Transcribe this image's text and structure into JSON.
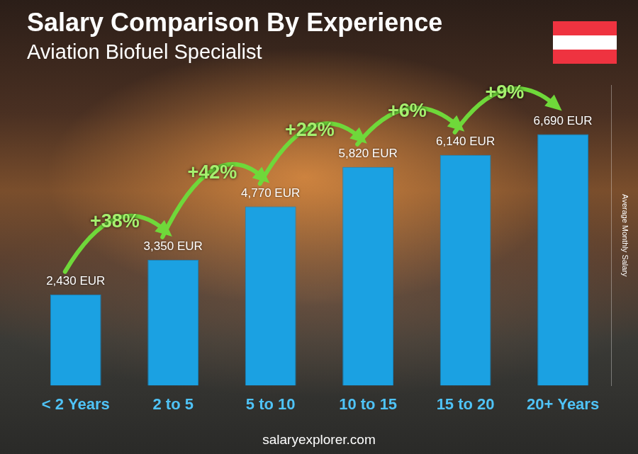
{
  "chart_data": {
    "type": "bar",
    "title": "Salary Comparison By Experience",
    "subtitle": "Aviation Biofuel Specialist",
    "categories": [
      "< 2 Years",
      "2 to 5",
      "5 to 10",
      "10 to 15",
      "15 to 20",
      "20+ Years"
    ],
    "values": [
      2430,
      3350,
      4770,
      5820,
      6140,
      6690
    ],
    "value_labels": [
      "2,430 EUR",
      "3,350 EUR",
      "4,770 EUR",
      "5,820 EUR",
      "6,140 EUR",
      "6,690 EUR"
    ],
    "data_labels": true,
    "color": "#1ba1e2",
    "y_label": "Average Monthly Salary",
    "ylim": [
      0,
      8000
    ],
    "grid": false,
    "tick_labels": "x",
    "annotations": [
      {
        "text": "+38%",
        "between": [
          "< 2 Years",
          "2 to 5"
        ]
      },
      {
        "text": "+42%",
        "between": [
          "2 to 5",
          "5 to 10"
        ]
      },
      {
        "text": "+22%",
        "between": [
          "5 to 10",
          "10 to 15"
        ]
      },
      {
        "text": "+6%",
        "between": [
          "10 to 15",
          "15 to 20"
        ]
      },
      {
        "text": "+9%",
        "between": [
          "15 to 20",
          "20+ Years"
        ]
      }
    ],
    "footer": "salaryexplorer.com"
  }
}
